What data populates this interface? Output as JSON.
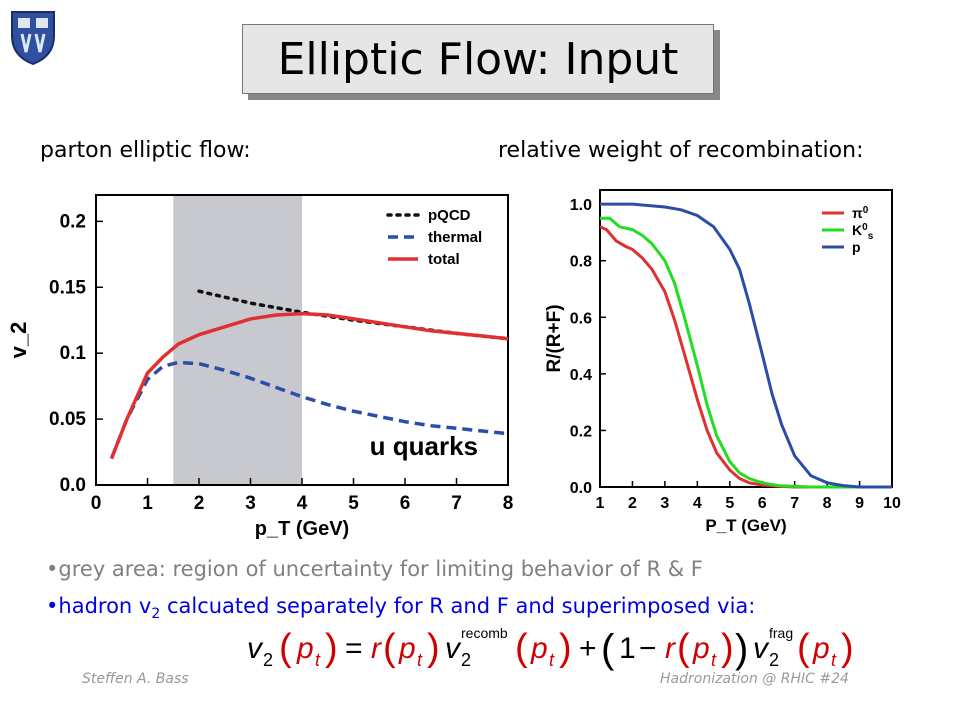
{
  "title": "Elliptic Flow: Input",
  "left_header": "parton elliptic flow:",
  "right_header": "relative weight of recombination:",
  "bullets": [
    "grey area: region of uncertainty for limiting behavior of R & F",
    {
      "pre": "hadron v",
      "sub": "2",
      "post": " calcuated separately for R and F and superimposed via:"
    }
  ],
  "formula": {
    "lhs": "v",
    "lhs_sub": "2",
    "arg": "p",
    "arg_sub": "t",
    "r": "r",
    "recomb_sup": "recomb",
    "frag_sup": "frag",
    "one": "1"
  },
  "footer_left": "Steffen A. Bass",
  "footer_right": "Hadronization @ RHIC  #24",
  "colors": {
    "red": "#e03030",
    "blue": "#2b4da8",
    "green": "#22dd22",
    "grey_band": "#c8c9cf",
    "formula_red": "#d00000"
  },
  "chart_data": [
    {
      "type": "line",
      "title": "",
      "xlabel": "p_T (GeV)",
      "ylabel": "v_2",
      "xlim": [
        0,
        8
      ],
      "ylim": [
        0,
        0.22
      ],
      "x_ticks": [
        0,
        1,
        2,
        3,
        4,
        5,
        6,
        7,
        8
      ],
      "y_ticks": [
        0.0,
        0.05,
        0.1,
        0.15,
        0.2
      ],
      "y_tick_labels": [
        "0.0",
        "0.05",
        "0.1",
        "0.15",
        "0.2"
      ],
      "shaded_band": [
        1.5,
        4.0
      ],
      "annotation": "u quarks",
      "legend_position": "top-right",
      "series": [
        {
          "name": "pQCD",
          "style": "dotted",
          "color": "#111111",
          "x": [
            2,
            3,
            4,
            5,
            6,
            7,
            8
          ],
          "y": [
            0.147,
            0.138,
            0.131,
            0.125,
            0.12,
            0.115,
            0.111
          ]
        },
        {
          "name": "thermal",
          "style": "dashed",
          "color": "#2b4da8",
          "x": [
            0.3,
            0.6,
            1,
            1.3,
            1.6,
            2,
            2.5,
            3,
            3.5,
            4,
            4.5,
            5,
            5.5,
            6,
            6.5,
            7,
            7.5,
            8
          ],
          "y": [
            0.02,
            0.05,
            0.08,
            0.09,
            0.093,
            0.092,
            0.087,
            0.081,
            0.074,
            0.067,
            0.061,
            0.056,
            0.052,
            0.048,
            0.045,
            0.043,
            0.041,
            0.039
          ]
        },
        {
          "name": "total",
          "style": "solid",
          "color": "#e03030",
          "x": [
            0.3,
            0.6,
            1,
            1.3,
            1.6,
            2,
            2.5,
            3,
            3.5,
            4,
            4.5,
            5,
            5.5,
            6,
            6.5,
            7,
            7.5,
            8
          ],
          "y": [
            0.02,
            0.05,
            0.085,
            0.097,
            0.107,
            0.114,
            0.12,
            0.126,
            0.129,
            0.13,
            0.129,
            0.126,
            0.123,
            0.12,
            0.117,
            0.115,
            0.113,
            0.111
          ]
        }
      ]
    },
    {
      "type": "line",
      "title": "",
      "xlabel": "P_T (GeV)",
      "ylabel": "R/(R+F)",
      "xlim": [
        1,
        10
      ],
      "ylim": [
        0,
        1.05
      ],
      "x_ticks": [
        1,
        2,
        3,
        4,
        5,
        6,
        7,
        8,
        9,
        10
      ],
      "y_ticks": [
        0.0,
        0.2,
        0.4,
        0.6,
        0.8,
        1.0
      ],
      "y_tick_labels": [
        "0.0",
        "0.2",
        "0.4",
        "0.6",
        "0.8",
        "1.0"
      ],
      "legend_position": "top-right",
      "series": [
        {
          "name": "π",
          "name_sup": "0",
          "color": "#e03030",
          "x": [
            1,
            1.2,
            1.5,
            1.8,
            2,
            2.3,
            2.6,
            3,
            3.3,
            3.6,
            4,
            4.3,
            4.6,
            5,
            5.3,
            5.6,
            6,
            6.5,
            7,
            7.5,
            8,
            9,
            10
          ],
          "y": [
            0.92,
            0.91,
            0.87,
            0.85,
            0.84,
            0.81,
            0.77,
            0.69,
            0.59,
            0.47,
            0.31,
            0.2,
            0.12,
            0.06,
            0.03,
            0.015,
            0.007,
            0.003,
            0.0,
            0.0,
            0.0,
            0.0,
            0.0
          ]
        },
        {
          "name": "K",
          "name_sup": "0",
          "name_sub": "s",
          "color": "#22dd22",
          "x": [
            1,
            1.3,
            1.6,
            2,
            2.3,
            2.6,
            3,
            3.3,
            3.6,
            4,
            4.3,
            4.6,
            5,
            5.3,
            5.6,
            6,
            6.5,
            7,
            7.5,
            8,
            9,
            10
          ],
          "y": [
            0.95,
            0.95,
            0.92,
            0.91,
            0.89,
            0.86,
            0.8,
            0.72,
            0.6,
            0.43,
            0.29,
            0.18,
            0.09,
            0.05,
            0.03,
            0.015,
            0.005,
            0.002,
            0.0,
            0.0,
            0.0,
            0.0
          ]
        },
        {
          "name": "p",
          "color": "#2b4da8",
          "x": [
            1,
            2,
            3,
            3.5,
            4,
            4.5,
            5,
            5.3,
            5.6,
            6,
            6.3,
            6.6,
            7,
            7.5,
            8,
            8.5,
            9,
            10
          ],
          "y": [
            1.0,
            1.0,
            0.99,
            0.98,
            0.96,
            0.92,
            0.84,
            0.77,
            0.65,
            0.47,
            0.33,
            0.22,
            0.11,
            0.04,
            0.015,
            0.005,
            0.0,
            0.0
          ]
        }
      ]
    }
  ]
}
